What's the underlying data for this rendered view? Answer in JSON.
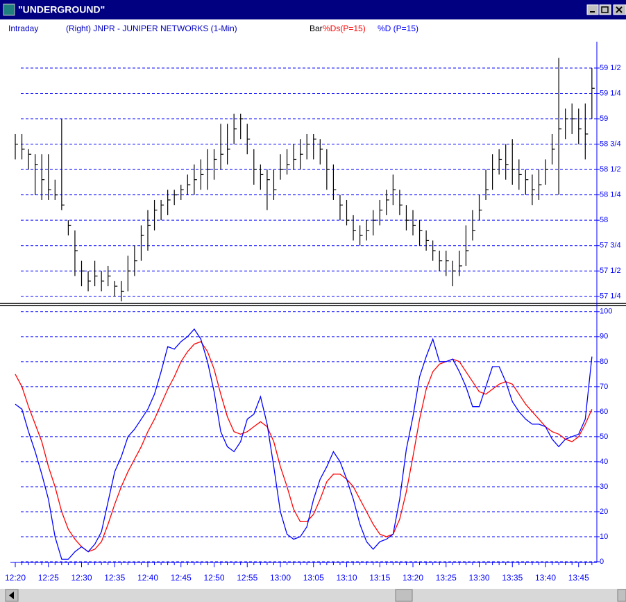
{
  "window": {
    "title": "\"UNDERGROUND\""
  },
  "header": {
    "mode": "Intraday",
    "symbol": "(Right) JNPR - JUNIPER NETWORKS (1-Min)"
  },
  "chart_data": [
    {
      "type": "ohlc",
      "series": [
        {
          "name": "Bar",
          "color": "#000000",
          "high": [
            58.85,
            58.85,
            58.7,
            58.65,
            58.65,
            58.65,
            58.4,
            59.0,
            58.0,
            57.9,
            57.6,
            57.5,
            57.6,
            57.5,
            57.55,
            57.4,
            57.4,
            57.65,
            57.75,
            57.95,
            58.1,
            58.2,
            58.2,
            58.3,
            58.3,
            58.35,
            58.45,
            58.55,
            58.6,
            58.7,
            58.7,
            58.95,
            58.95,
            59.05,
            59.05,
            58.95,
            58.7,
            58.55,
            58.5,
            58.5,
            58.65,
            58.7,
            58.75,
            58.8,
            58.85,
            58.85,
            58.8,
            58.7,
            58.55,
            58.25,
            58.2,
            58.05,
            57.95,
            58.0,
            58.1,
            58.2,
            58.3,
            58.45,
            58.3,
            58.15,
            58.1,
            58.0,
            57.9,
            57.8,
            57.7,
            57.7,
            57.6,
            57.7,
            57.95,
            58.1,
            58.25,
            58.5,
            58.65,
            58.7,
            58.75,
            58.8,
            58.6,
            58.5,
            58.45,
            58.5,
            58.6,
            58.85,
            59.6,
            59.1,
            59.15,
            59.1,
            59.15,
            59.5
          ],
          "low": [
            58.6,
            58.6,
            58.5,
            58.25,
            58.2,
            58.2,
            58.2,
            58.1,
            57.85,
            57.45,
            57.35,
            57.3,
            57.35,
            57.3,
            57.35,
            57.25,
            57.2,
            57.3,
            57.45,
            57.6,
            57.7,
            57.9,
            58.0,
            58.05,
            58.15,
            58.2,
            58.25,
            58.25,
            58.3,
            58.3,
            58.4,
            58.5,
            58.55,
            58.75,
            58.8,
            58.65,
            58.35,
            58.3,
            58.1,
            58.2,
            58.4,
            58.45,
            58.5,
            58.5,
            58.6,
            58.6,
            58.55,
            58.3,
            58.2,
            58.0,
            57.95,
            57.8,
            57.75,
            57.8,
            57.85,
            57.95,
            58.05,
            58.15,
            58.05,
            57.9,
            57.85,
            57.75,
            57.7,
            57.6,
            57.5,
            57.45,
            57.35,
            57.45,
            57.55,
            57.8,
            58.0,
            58.2,
            58.3,
            58.45,
            58.4,
            58.35,
            58.3,
            58.25,
            58.15,
            58.2,
            58.35,
            58.55,
            58.25,
            58.8,
            58.85,
            58.75,
            58.6,
            59.0
          ],
          "close": [
            58.75,
            58.7,
            58.65,
            58.55,
            58.4,
            58.3,
            58.25,
            58.15,
            57.95,
            57.7,
            57.5,
            57.4,
            57.45,
            57.4,
            57.45,
            57.35,
            57.3,
            57.5,
            57.6,
            57.85,
            57.95,
            58.1,
            58.15,
            58.2,
            58.25,
            58.3,
            58.35,
            58.4,
            58.45,
            58.5,
            58.6,
            58.65,
            58.7,
            58.9,
            59.0,
            58.8,
            58.5,
            58.45,
            58.4,
            58.3,
            58.5,
            58.55,
            58.6,
            58.65,
            58.75,
            58.8,
            58.7,
            58.5,
            58.3,
            58.15,
            58.0,
            57.9,
            57.85,
            57.9,
            58.0,
            58.1,
            58.2,
            58.3,
            58.15,
            58.0,
            57.95,
            57.9,
            57.8,
            57.7,
            57.6,
            57.6,
            57.5,
            57.55,
            57.7,
            57.9,
            58.1,
            58.3,
            58.5,
            58.6,
            58.55,
            58.5,
            58.45,
            58.4,
            58.3,
            58.35,
            58.5,
            58.7,
            58.9,
            59.0,
            59.0,
            58.9,
            58.85,
            59.3
          ]
        }
      ],
      "ylim": [
        57.18,
        59.76
      ],
      "yticks": [
        {
          "value": 59.5,
          "label": "59 1/2"
        },
        {
          "value": 59.25,
          "label": "59 1/4"
        },
        59,
        {
          "value": 58.75,
          "label": "58 3/4"
        },
        {
          "value": 58.5,
          "label": "58 1/2"
        },
        {
          "value": 58.25,
          "label": "58 1/4"
        },
        58,
        {
          "value": 57.75,
          "label": "57 3/4"
        },
        {
          "value": 57.5,
          "label": "57 1/2"
        },
        {
          "value": 57.25,
          "label": "57 1/4"
        }
      ],
      "grid": true
    },
    {
      "type": "line",
      "categories": [
        "12:20",
        null,
        null,
        null,
        null,
        "12:25",
        null,
        null,
        null,
        null,
        "12:30",
        null,
        null,
        null,
        null,
        "12:35",
        null,
        null,
        null,
        null,
        "12:40",
        null,
        null,
        null,
        null,
        "12:45",
        null,
        null,
        null,
        null,
        "12:50",
        null,
        null,
        null,
        null,
        "12:55",
        null,
        null,
        null,
        null,
        "13:00",
        null,
        null,
        null,
        null,
        "13:05",
        null,
        null,
        null,
        null,
        "13:10",
        null,
        null,
        null,
        null,
        "13:15",
        null,
        null,
        null,
        null,
        "13:20",
        null,
        null,
        null,
        null,
        "13:25",
        null,
        null,
        null,
        null,
        "13:30",
        null,
        null,
        null,
        null,
        "13:35",
        null,
        null,
        null,
        null,
        "13:40",
        null,
        null,
        null,
        null,
        "13:45",
        null,
        null
      ],
      "series": [
        {
          "name": "%Ds(P=15)",
          "color": "#ff0000",
          "values": [
            75,
            70,
            62,
            55,
            48,
            38,
            30,
            20,
            13,
            9,
            6,
            4,
            5,
            8,
            15,
            23,
            30,
            36,
            41,
            46,
            52,
            57,
            63,
            69,
            74,
            80,
            84,
            87,
            88,
            84,
            77,
            67,
            58,
            52,
            51,
            52,
            54,
            56,
            54,
            48,
            38,
            30,
            21,
            16,
            16,
            19,
            25,
            32,
            35,
            35,
            33,
            30,
            25,
            20,
            15,
            11,
            10,
            11,
            17,
            28,
            42,
            57,
            69,
            76,
            79,
            80,
            81,
            80,
            76,
            72,
            68,
            67,
            69,
            71,
            72,
            71,
            67,
            63,
            60,
            57,
            54,
            52,
            51,
            49,
            48,
            50,
            55,
            61
          ]
        },
        {
          "name": "%D (P=15)",
          "color": "#0000ff",
          "values": [
            63,
            61,
            52,
            44,
            35,
            25,
            10,
            1,
            1,
            4,
            6,
            4,
            7,
            12,
            24,
            36,
            42,
            50,
            53,
            57,
            61,
            67,
            76,
            86,
            85,
            88,
            90,
            93,
            89,
            80,
            68,
            52,
            46,
            44,
            48,
            57,
            59,
            66,
            55,
            38,
            20,
            11,
            9,
            10,
            14,
            25,
            33,
            38,
            44,
            40,
            33,
            25,
            15,
            8,
            5,
            8,
            9,
            11,
            25,
            45,
            58,
            74,
            82,
            89,
            80,
            80,
            81,
            76,
            70,
            62,
            62,
            70,
            78,
            78,
            72,
            64,
            60,
            57,
            55,
            55,
            54,
            49,
            46,
            49,
            50,
            51,
            57,
            82
          ]
        }
      ],
      "ylim": [
        0,
        103
      ],
      "yticks": [
        100,
        90,
        80,
        70,
        60,
        50,
        40,
        30,
        20,
        10,
        0
      ],
      "grid": true
    }
  ]
}
